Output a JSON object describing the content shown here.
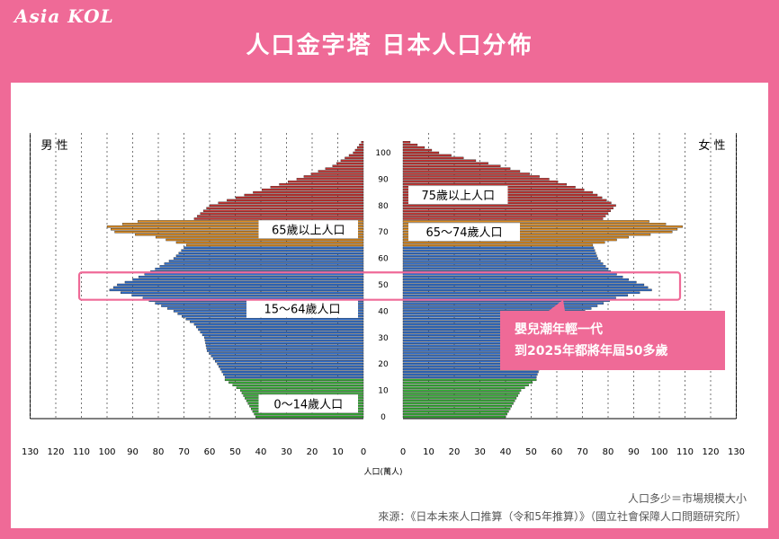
{
  "logo": "Asia KOL",
  "title": "人口金字塔  日本人口分佈",
  "chart_data": {
    "type": "bar",
    "orientation": "horizontal-population-pyramid",
    "left_label": "男 性",
    "right_label": "女 性",
    "xlabel": "人口(萬人)",
    "xlim": [
      0,
      130
    ],
    "x_ticks": [
      0,
      10,
      20,
      30,
      40,
      50,
      60,
      70,
      80,
      90,
      100,
      110,
      120,
      130
    ],
    "y_ticks": [
      0,
      10,
      20,
      30,
      40,
      50,
      60,
      70,
      80,
      90,
      100
    ],
    "ylim": [
      0,
      105
    ],
    "grid": "vertical-dashed",
    "groups": [
      {
        "label": "0〜14歲人口",
        "from": 0,
        "to": 14,
        "color": "#33b233"
      },
      {
        "label": "15〜64歲人口",
        "from": 15,
        "to": 64,
        "color": "#2f6fcf"
      },
      {
        "label": "65〜74歲人口",
        "from": 65,
        "to": 74,
        "color": "#e08c1e"
      },
      {
        "label": "75歲以上人口",
        "from": 75,
        "to": 105,
        "color": "#c8312f"
      }
    ],
    "male_label": "65歲以上人口",
    "male_label_age": 71,
    "male_lower_labels": [
      {
        "text": "15〜64歲人口",
        "age": 41
      },
      {
        "text": "0〜14歲人口",
        "age": 5
      }
    ],
    "female_labels": [
      {
        "text": "75歲以上人口",
        "age": 84
      },
      {
        "text": "65〜74歲人口",
        "age": 70
      }
    ],
    "male_key": {
      "age": [
        0,
        10,
        14,
        15,
        20,
        25,
        30,
        35,
        40,
        45,
        48,
        50,
        52,
        55,
        60,
        65,
        68,
        70,
        72,
        74,
        75,
        80,
        85,
        90,
        95,
        100,
        105
      ],
      "value": [
        42,
        48,
        54,
        54,
        57,
        61,
        62,
        66,
        74,
        86,
        99,
        96,
        90,
        83,
        74,
        69,
        81,
        97,
        100,
        88,
        66,
        60,
        43,
        26,
        12,
        4,
        0
      ]
    },
    "female_key": {
      "age": [
        0,
        10,
        14,
        15,
        20,
        25,
        30,
        35,
        40,
        45,
        48,
        50,
        52,
        55,
        60,
        65,
        68,
        70,
        72,
        74,
        75,
        80,
        85,
        90,
        95,
        100,
        105
      ],
      "value": [
        40,
        46,
        52,
        52,
        54,
        58,
        60,
        64,
        71,
        83,
        97,
        94,
        88,
        81,
        76,
        74,
        88,
        105,
        109,
        96,
        78,
        83,
        74,
        57,
        38,
        14,
        0
      ]
    },
    "highlight": {
      "from": 45,
      "to": 54,
      "text_line1": "嬰兒潮年輕一代",
      "text_line2": "到2025年都將年屆50多歲",
      "box_color": "#ef6a97"
    }
  },
  "notes": {
    "line1": "人口多少＝市場規模大小",
    "line2": "來源：《日本未來人口推算（令和5年推算）》（國立社會保障人口問題研究所）"
  }
}
